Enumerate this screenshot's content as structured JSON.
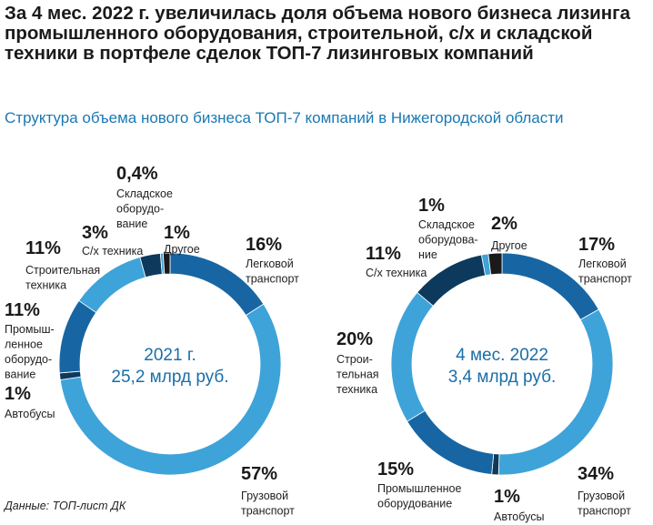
{
  "title": "За 4 мес. 2022 г. увеличилась доля объема нового бизнеса лизинга промышленного оборудования, строительной, с/х и складской техники в портфеле сделок ТОП-7 лизинговых компаний",
  "subtitle": "Структура объема нового бизнеса ТОП-7 компаний в Нижегородской области",
  "source": "Данные: ТОП-лист ДК",
  "chart_data": [
    {
      "type": "pie",
      "center_label": "2021 г.\n25,2 млрд руб.",
      "categories": [
        "Легковой\nтранспорт",
        "Грузовой\nтранспорт",
        "Автобусы",
        "Промыш-\nленное\nоборудо-\nвание",
        "Строительная\nтехника",
        "С/х техника",
        "Складское\nоборудо-\nвание",
        "Другое"
      ],
      "values": [
        16,
        57,
        1,
        11,
        11,
        3,
        0.4,
        1
      ],
      "value_labels": [
        "16%",
        "57%",
        "1%",
        "11%",
        "11%",
        "3%",
        "0,4%",
        "1%"
      ],
      "colors": [
        "#1766a3",
        "#3ea3d9",
        "#0d3a5c",
        "#1766a3",
        "#3ea3d9",
        "#0d3a5c",
        "#3ea3d9",
        "#1a1a1a"
      ]
    },
    {
      "type": "pie",
      "center_label": "4 мес. 2022\n3,4 млрд руб.",
      "categories": [
        "Легковой\nтранспорт",
        "Грузовой\nтранспорт",
        "Автобусы",
        "Промышленное\nоборудование",
        "Строи-\nтельная\nтехника",
        "С/х техника",
        "Складское\nоборудова-\nние",
        "Другое"
      ],
      "values": [
        17,
        34,
        1,
        15,
        20,
        11,
        1,
        2
      ],
      "value_labels": [
        "17%",
        "34%",
        "1%",
        "15%",
        "20%",
        "11%",
        "1%",
        "2%"
      ],
      "colors": [
        "#1766a3",
        "#3ea3d9",
        "#0d3a5c",
        "#1766a3",
        "#3ea3d9",
        "#0d3a5c",
        "#3ea3d9",
        "#1a1a1a"
      ]
    }
  ]
}
